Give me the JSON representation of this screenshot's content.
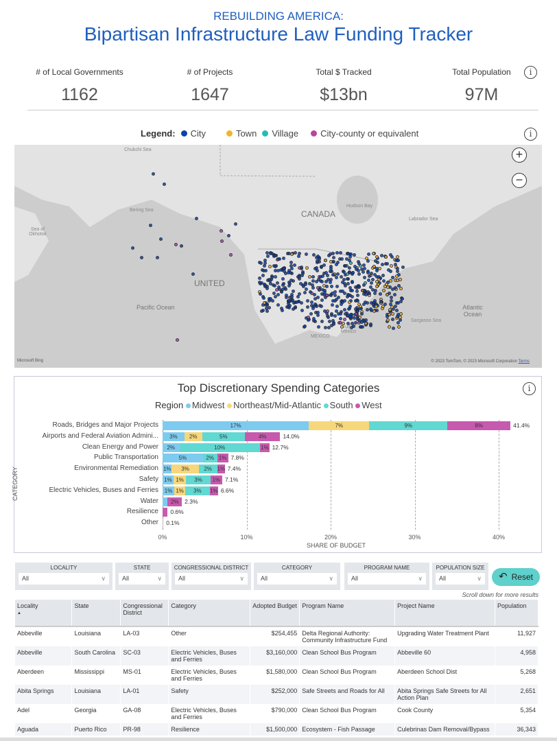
{
  "header": {
    "supertitle": "REBUILDING AMERICA:",
    "title": "Bipartisan Infrastructure Law Funding Tracker"
  },
  "kpis": [
    {
      "label": "# of Local Governments",
      "value": "1162"
    },
    {
      "label": "# of Projects",
      "value": "1647"
    },
    {
      "label": "Total $ Tracked",
      "value": "$13bn"
    },
    {
      "label": "Total Population",
      "value": "97M"
    }
  ],
  "info_icon": "i",
  "map": {
    "legend_label": "Legend:",
    "legend": [
      {
        "label": "City",
        "color": "#0b45a8"
      },
      {
        "label": "Town",
        "color": "#f1b52a"
      },
      {
        "label": "Village",
        "color": "#22bdb5"
      },
      {
        "label": "City-county or equivalent",
        "color": "#b8459e"
      }
    ],
    "labels": {
      "chukchi": "Chukchi Sea",
      "bering": "Bering Sea",
      "okhotsk": "Sea of Okhotsk",
      "canada": "CANADA",
      "hudson": "Hudson Bay",
      "labrador": "Labrador Sea",
      "pacific": "Pacific Ocean",
      "atlantic": "Atlantic Ocean",
      "sargasso": "Sargasso Sea",
      "gulf": "Gulf of Mexico",
      "mexico": "MEXICO",
      "us": "UNITED"
    },
    "zoom_in": "+",
    "zoom_out": "−",
    "attribution": "© 2023 TomTom, © 2023 Microsoft Corporation",
    "terms": "Terms",
    "bing": "Microsoft Bing"
  },
  "chart_data": {
    "type": "bar",
    "title": "Top Discretionary Spending Categories",
    "legend_title": "Region",
    "series": [
      {
        "name": "Midwest",
        "color": "#7ecbf0"
      },
      {
        "name": "Northeast/Mid-Atlantic",
        "color": "#f6d77c"
      },
      {
        "name": "South",
        "color": "#62d8d2"
      },
      {
        "name": "West",
        "color": "#c65aae"
      }
    ],
    "categories": [
      "Roads, Bridges and Major Projects",
      "Airports and Federal Aviation Admini...",
      "Clean Energy and Power",
      "Public Transportation",
      "Environmental Remediation",
      "Safety",
      "Electric Vehicles, Buses and Ferries",
      "Water",
      "Resilience",
      "Other"
    ],
    "values": [
      [
        17.4,
        7.2,
        9.3,
        7.5
      ],
      [
        2.6,
        2.1,
        5.1,
        4.2
      ],
      [
        2.0,
        0,
        9.6,
        1.1
      ],
      [
        4.8,
        0,
        1.7,
        1.3
      ],
      [
        1.1,
        3.2,
        2.2,
        0.9
      ],
      [
        1.3,
        1.5,
        2.9,
        1.4
      ],
      [
        1.4,
        1.3,
        2.9,
        1.0
      ],
      [
        0.6,
        0,
        0,
        1.7
      ],
      [
        0,
        0,
        0,
        0.6
      ],
      [
        0.1,
        0,
        0,
        0
      ]
    ],
    "segment_labels": [
      [
        "17%",
        "7%",
        "9%",
        "8%"
      ],
      [
        "3%",
        "2%",
        "5%",
        "4%"
      ],
      [
        "2%",
        "",
        "10%",
        "1%"
      ],
      [
        "5%",
        "",
        "2%",
        "1%"
      ],
      [
        "1%",
        "3%",
        "2%",
        "1%"
      ],
      [
        "1%",
        "1%",
        "3%",
        "1%"
      ],
      [
        "1%",
        "1%",
        "3%",
        "1%"
      ],
      [
        "",
        "",
        "",
        "2%"
      ],
      [
        "",
        "",
        "",
        ""
      ],
      [
        "",
        "",
        "",
        ""
      ]
    ],
    "totals": [
      "41.4%",
      "14.0%",
      "12.7%",
      "7.8%",
      "7.4%",
      "7.1%",
      "6.6%",
      "2.3%",
      "0.6%",
      "0.1%"
    ],
    "xticks": [
      "0%",
      "10%",
      "20%",
      "30%",
      "40%"
    ],
    "xtick_values": [
      0,
      10,
      20,
      30,
      40
    ],
    "xlim": [
      0,
      43
    ],
    "xlabel": "SHARE OF BUDGET",
    "ylabel": "CATEGORY"
  },
  "filters": [
    {
      "label": "LOCALITY",
      "value": "All"
    },
    {
      "label": "STATE",
      "value": "All"
    },
    {
      "label": "CONGRESSIONAL DISTRICT",
      "value": "All"
    },
    {
      "label": "CATEGORY",
      "value": "All"
    },
    {
      "label": "PROGRAM NAME",
      "value": "All"
    },
    {
      "label": "POPULATION SIZE",
      "value": "All"
    }
  ],
  "reset_label": "Reset",
  "scroll_note": "Scroll down for more results",
  "table": {
    "columns": [
      "Locality",
      "State",
      "Congressional District",
      "Category",
      "Adopted Budget",
      "Program Name",
      "Project Name",
      "Population"
    ],
    "sort_indicator": "▲",
    "rows": [
      [
        "Abbeville",
        "Louisiana",
        "LA-03",
        "Other",
        "$254,455",
        "Delta Regional Authority: Community Infrastructure Fund",
        "Upgrading Water Treatment Plant",
        "11,927"
      ],
      [
        "Abbeville",
        "South Carolina",
        "SC-03",
        "Electric Vehicles, Buses and Ferries",
        "$3,160,000",
        "Clean School Bus Program",
        "Abbeville 60",
        "4,958"
      ],
      [
        "Aberdeen",
        "Mississippi",
        "MS-01",
        "Electric Vehicles, Buses and Ferries",
        "$1,580,000",
        "Clean School Bus Program",
        "Aberdeen School Dist",
        "5,268"
      ],
      [
        "Abita Springs",
        "Louisiana",
        "LA-01",
        "Safety",
        "$252,000",
        "Safe Streets and Roads for All",
        "Abita Springs Safe Streets for All Action Plan",
        "2,651"
      ],
      [
        "Adel",
        "Georgia",
        "GA-08",
        "Electric Vehicles, Buses and Ferries",
        "$790,000",
        "Clean School Bus Program",
        "Cook County",
        "5,354"
      ],
      [
        "Aguada",
        "Puerto Rico",
        "PR-98",
        "Resilience",
        "$1,500,000",
        "Ecosystem - Fish Passage",
        "Culebrinas Dam Removal/Bypass",
        "36,343"
      ]
    ]
  }
}
